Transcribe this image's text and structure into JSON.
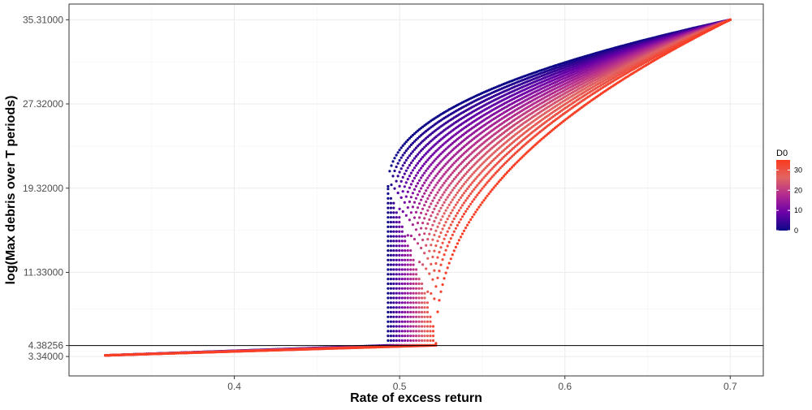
{
  "chart_data": {
    "type": "scatter",
    "title": "",
    "xlabel": "Rate of excess return",
    "ylabel": "log(Max debris over T periods)",
    "xlim": [
      0.3,
      0.72
    ],
    "ylim": [
      1.5,
      36.8
    ],
    "x_ticks": [
      {
        "value": 0.4,
        "label": "0.4"
      },
      {
        "value": 0.5,
        "label": "0.5"
      },
      {
        "value": 0.6,
        "label": "0.6"
      },
      {
        "value": 0.7,
        "label": "0.7"
      }
    ],
    "y_ticks": [
      {
        "value": 3.34,
        "label": "3.34000"
      },
      {
        "value": 4.38256,
        "label": "4.38256"
      },
      {
        "value": 11.33,
        "label": "11.33000"
      },
      {
        "value": 19.32,
        "label": "19.32000"
      },
      {
        "value": 27.32,
        "label": "27.32000"
      },
      {
        "value": 35.31,
        "label": "35.31000"
      }
    ],
    "hline": {
      "y": 4.38256,
      "color": "#000000"
    },
    "grid": true,
    "legend": {
      "title": "D0",
      "position": "right",
      "min": 0,
      "max": 35,
      "ticks": [
        0,
        10,
        20,
        30
      ],
      "gradient": [
        "#0d0887",
        "#6a00a8",
        "#b12a90",
        "#e16462",
        "#fb3a1e"
      ]
    },
    "series_model": {
      "d0_values": [
        0,
        2,
        4,
        6,
        8,
        10,
        12,
        14,
        16,
        18,
        20,
        22,
        24,
        26,
        28,
        30,
        32,
        34
      ],
      "r_min": 0.322,
      "r_max": 0.7,
      "r_threshold_start": 0.493,
      "r_threshold_end": 0.522,
      "y_low_start": 3.45,
      "y_low_end": 4.4,
      "y_jump_low": 4.6,
      "y_jump_high": 19.5,
      "y_end": 35.31
    }
  }
}
